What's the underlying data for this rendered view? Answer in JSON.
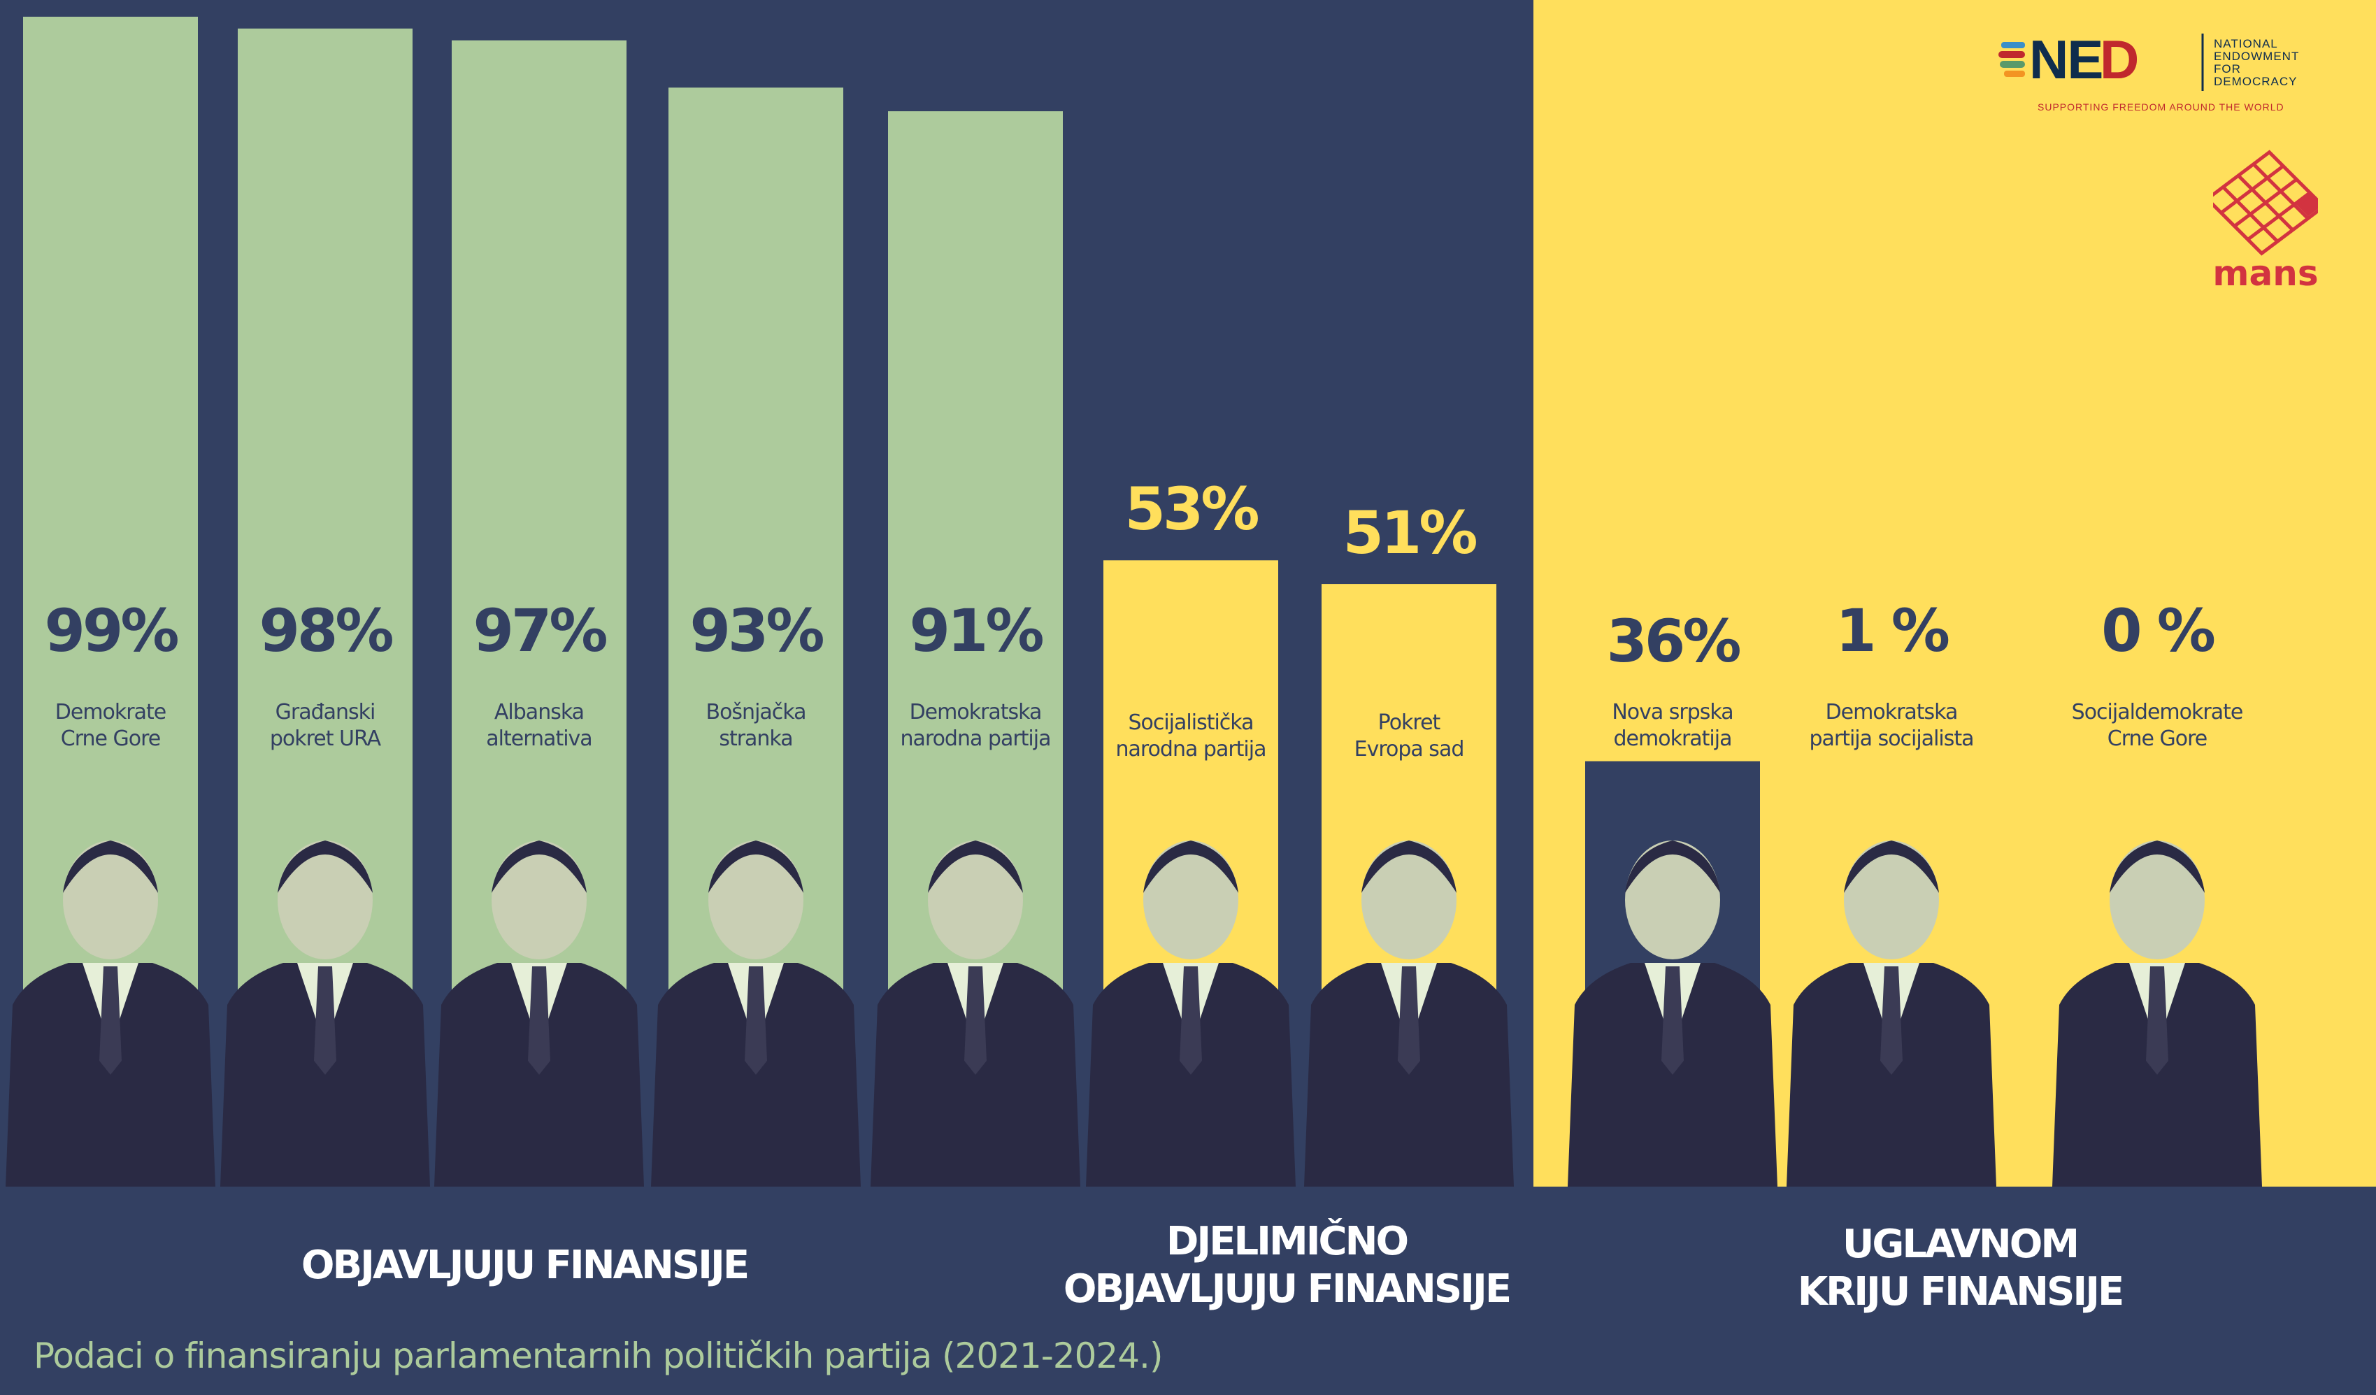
{
  "colors": {
    "navy": "#334062",
    "green": "#adcb9c",
    "yellow": "#ffdf5c",
    "red": "#d23340",
    "white": "#ffffff"
  },
  "chart_data": {
    "type": "bar",
    "categories": [
      "Demokrate\nCrne Gore",
      "Građanski\npokret URA",
      "Albanska\nalternativa",
      "Bošnjačka\nstranka",
      "Demokratska\nnarodna partija",
      "Socijalistička\nnarodna partija",
      "Pokret\nEvropa sad",
      "Nova srpska\ndemokratija",
      "Demokratska\npartija socijalista",
      "Socijaldemokrate\nCrne Gore"
    ],
    "values": [
      99,
      98,
      97,
      93,
      91,
      53,
      51,
      36,
      1,
      0
    ],
    "value_labels": [
      "99%",
      "98%",
      "97%",
      "93%",
      "91%",
      "53%",
      "51%",
      "36%",
      "1 %",
      "0 %"
    ],
    "groups": [
      "OBJAVLJUJU FINANSIJE",
      "DJELIMIČNO\nOBJAVLJUJU FINANSIJE",
      "UGLAVNOM\nKRIJU FINANSIJE"
    ],
    "group_of_bar": [
      0,
      0,
      0,
      0,
      0,
      1,
      1,
      2,
      2,
      2
    ],
    "ylim": [
      0,
      100
    ],
    "grid": false
  },
  "subtitle": "Podaci o finansiranju parlamentarnih političkih partija (2021-2024.)",
  "logos": {
    "ned": {
      "mark": "NED",
      "text": "NATIONAL\nENDOWMENT\nFOR\nDEMOCRACY",
      "tagline": "SUPPORTING FREEDOM AROUND THE WORLD"
    },
    "mans": {
      "text": "mans"
    }
  }
}
